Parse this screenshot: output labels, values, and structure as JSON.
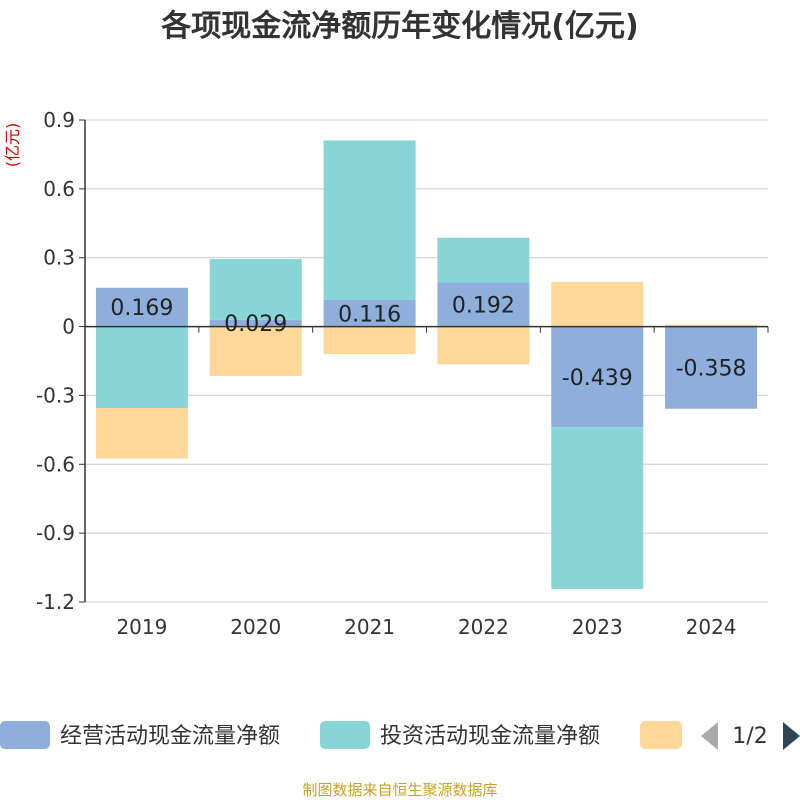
{
  "chart_data": {
    "type": "bar",
    "stacked": true,
    "title": "各项现金流净额历年变化情况(亿元)",
    "ylabel": "(亿元)",
    "xlabel": "",
    "categories": [
      "2019",
      "2020",
      "2021",
      "2022",
      "2023",
      "2024"
    ],
    "ylim": [
      -1.2,
      0.9
    ],
    "yticks": [
      0.9,
      0.6,
      0.3,
      0,
      -0.3,
      -0.6,
      -0.9,
      -1.2
    ],
    "ytick_labels": [
      "0.9",
      "0.6",
      "0.3",
      "0",
      "-0.3",
      "-0.6",
      "-0.9",
      "-1.2"
    ],
    "grid": true,
    "series": [
      {
        "name": "经营活动现金流量净额",
        "color": "#8eaedc",
        "values": [
          0.169,
          0.029,
          0.116,
          0.192,
          -0.439,
          -0.358
        ],
        "labels": [
          "0.169",
          "0.029",
          "0.116",
          "0.192",
          "-0.439",
          "-0.358"
        ]
      },
      {
        "name": "投资活动现金流量净额",
        "color": "#88d5d7",
        "values": [
          -0.355,
          0.265,
          0.695,
          0.195,
          -0.705,
          0.0
        ]
      },
      {
        "name": "",
        "color": "#fed898",
        "values": [
          -0.22,
          -0.215,
          -0.12,
          -0.165,
          0.195,
          0.008
        ]
      }
    ],
    "legend": {
      "position": "bottom",
      "page": "1/2"
    }
  },
  "footer": {
    "source": "制图数据来自恒生聚源数据库"
  }
}
